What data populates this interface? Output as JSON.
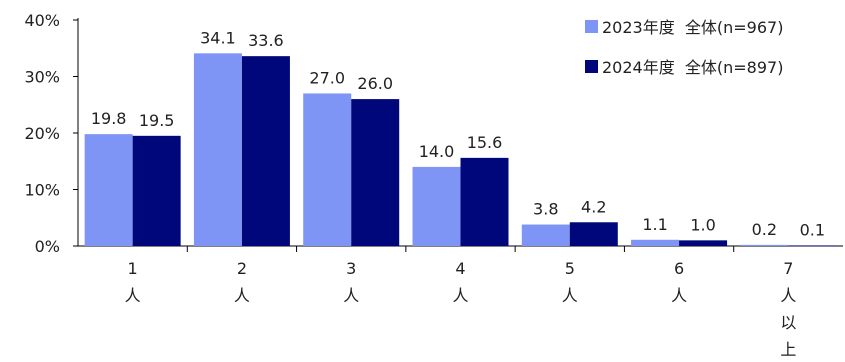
{
  "chart_data": {
    "type": "bar",
    "categories": [
      [
        "1",
        "人"
      ],
      [
        "2",
        "人"
      ],
      [
        "3",
        "人"
      ],
      [
        "4",
        "人"
      ],
      [
        "5",
        "人"
      ],
      [
        "6",
        "人"
      ],
      [
        "7",
        "人",
        "以",
        "上"
      ]
    ],
    "series": [
      {
        "name": "2023年度  全体(n=967)",
        "color": "#7f95f5",
        "values": [
          19.8,
          34.1,
          27.0,
          14.0,
          3.8,
          1.1,
          0.2
        ],
        "labels": [
          "19.8",
          "34.1",
          "27.0",
          "14.0",
          "3.8",
          "1.1",
          "0.2"
        ]
      },
      {
        "name": "2024年度  全体(n=897)",
        "color": "#00077a",
        "values": [
          19.5,
          33.6,
          26.0,
          15.6,
          4.2,
          1.0,
          0.1
        ],
        "labels": [
          "19.5",
          "33.6",
          "26.0",
          "15.6",
          "4.2",
          "1.0",
          "0.1"
        ]
      }
    ],
    "ylim": [
      0,
      40
    ],
    "yticks": [
      "0%",
      "10%",
      "20%",
      "30%",
      "40%"
    ],
    "grid": false,
    "legend": "top-right"
  }
}
